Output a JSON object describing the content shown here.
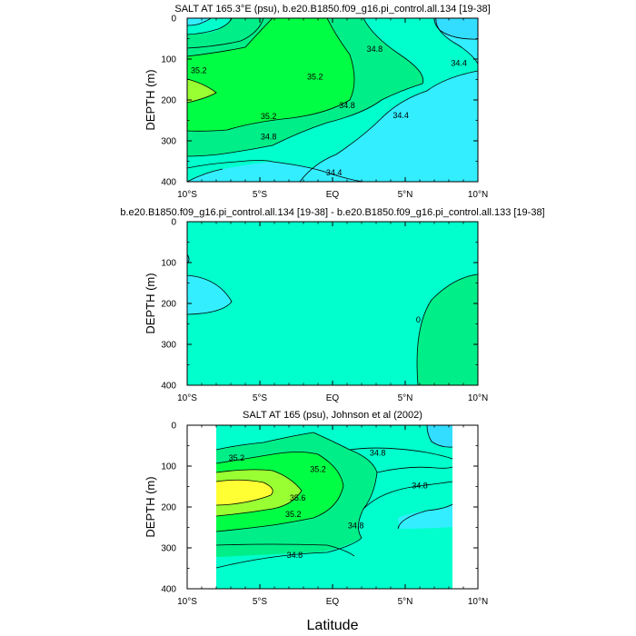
{
  "figure": {
    "xlabel": "Latitude",
    "x_tick_labels": [
      "10°S",
      "5°S",
      "EQ",
      "5°N",
      "10°N"
    ],
    "y_tick_labels": [
      "0",
      "100",
      "200",
      "300",
      "400"
    ],
    "ylabel": "DEPTH (m)"
  },
  "colors": {
    "lightcyan": "#33ddff",
    "cyan": "#33eeff",
    "aqua": "#00ffcc",
    "green_light": "#00ee88",
    "green": "#00ff44",
    "lime": "#99ff33",
    "yellow": "#ffff33"
  },
  "chart_data": [
    {
      "type": "contour",
      "title": "SALT AT 165.3°E (psu), b.e20.B1850.f09_g16.pi_control.all.134 [19-38]",
      "xlabel": "",
      "ylabel": "DEPTH (m)",
      "xlim": [
        -10,
        10
      ],
      "ylim": [
        400,
        0
      ],
      "contour_labels": [
        {
          "text": "34.8",
          "x": 2.9,
          "y": 75
        },
        {
          "text": "34.4",
          "x": 8.7,
          "y": 110
        },
        {
          "text": "35.2",
          "x": -9.2,
          "y": 128
        },
        {
          "text": "35.2",
          "x": -1.2,
          "y": 143
        },
        {
          "text": "34.8",
          "x": 1.0,
          "y": 213
        },
        {
          "text": "34.4",
          "x": 4.7,
          "y": 238
        },
        {
          "text": "35.2",
          "x": -4.4,
          "y": 240
        },
        {
          "text": "34.8",
          "x": -4.4,
          "y": 290
        },
        {
          "text": "34.4",
          "x": 0.1,
          "y": 378
        }
      ]
    },
    {
      "type": "contour",
      "title": "b.e20.B1850.f09_g16.pi_control.all.134 [19-38] - b.e20.B1850.f09_g16.pi_control.all.133 [19-38]",
      "xlabel": "",
      "ylabel": "DEPTH (m)",
      "xlim": [
        -10,
        10
      ],
      "ylim": [
        400,
        0
      ],
      "contour_labels": [
        {
          "text": "0",
          "x": 5.9,
          "y": 240
        }
      ]
    },
    {
      "type": "contour",
      "title": "SALT AT 165 (psu), Johnson et al (2002)",
      "xlabel": "Latitude",
      "ylabel": "DEPTH (m)",
      "xlim": [
        -10,
        10
      ],
      "ylim": [
        400,
        0
      ],
      "contour_labels": [
        {
          "text": "34.8",
          "x": 3.1,
          "y": 68
        },
        {
          "text": "35.2",
          "x": -6.6,
          "y": 80
        },
        {
          "text": "35.2",
          "x": -1.0,
          "y": 108
        },
        {
          "text": "34.8",
          "x": 6.0,
          "y": 148
        },
        {
          "text": "35.6",
          "x": -2.4,
          "y": 178
        },
        {
          "text": "35.2",
          "x": -2.7,
          "y": 218
        },
        {
          "text": "34.8",
          "x": 1.6,
          "y": 245
        },
        {
          "text": "34.8",
          "x": -2.6,
          "y": 318
        }
      ]
    }
  ]
}
